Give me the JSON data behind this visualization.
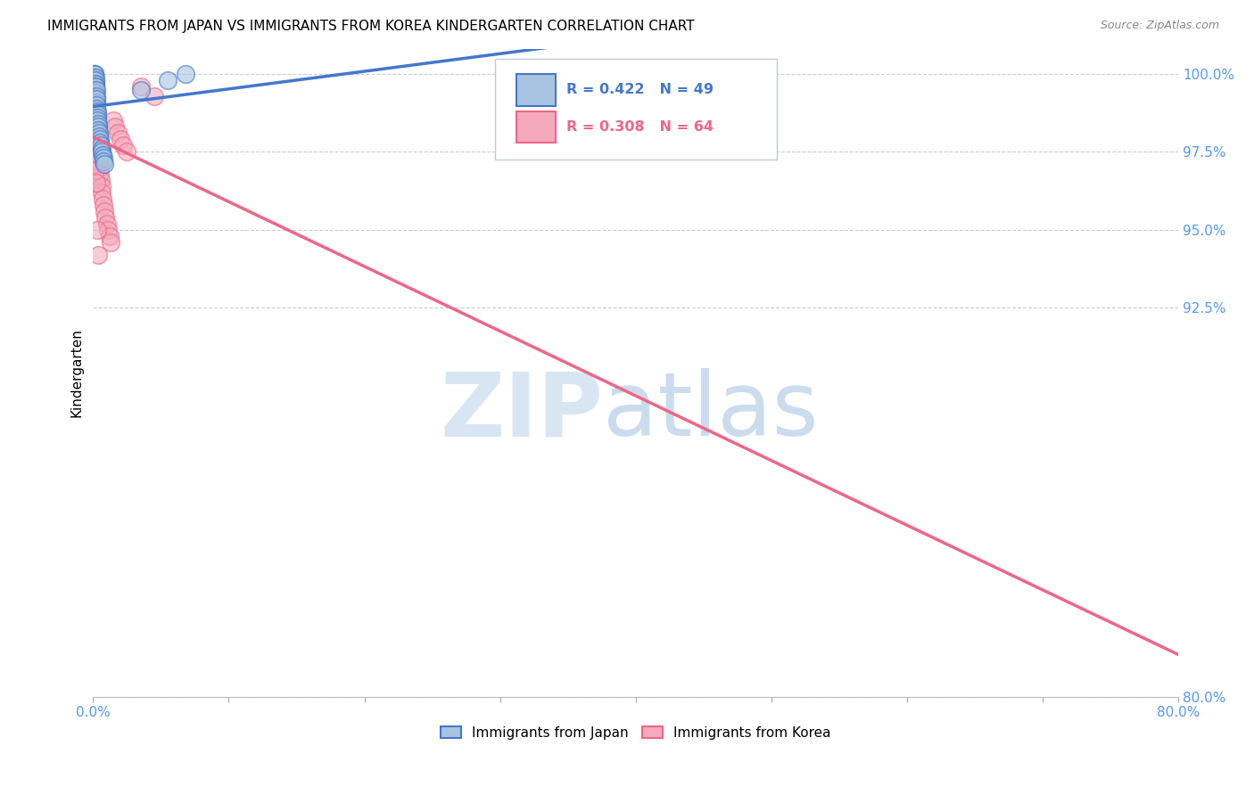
{
  "title": "IMMIGRANTS FROM JAPAN VS IMMIGRANTS FROM KOREA KINDERGARTEN CORRELATION CHART",
  "source": "Source: ZipAtlas.com",
  "ylabel": "Kindergarten",
  "yticks": [
    80.0,
    92.5,
    95.0,
    97.5,
    100.0
  ],
  "ytick_labels": [
    "80.0%",
    "92.5%",
    "95.0%",
    "97.5%",
    "100.0%"
  ],
  "japan_R": 0.422,
  "japan_N": 49,
  "korea_R": 0.308,
  "korea_N": 64,
  "japan_color": "#A8C4E0",
  "korea_color": "#F4AABB",
  "japan_line_color": "#4477CC",
  "korea_line_color": "#EE6688",
  "legend_japan": "Immigrants from Japan",
  "legend_korea": "Immigrants from Korea",
  "japan_x": [
    0.05,
    0.07,
    0.08,
    0.1,
    0.1,
    0.11,
    0.12,
    0.12,
    0.13,
    0.13,
    0.14,
    0.14,
    0.15,
    0.15,
    0.16,
    0.17,
    0.17,
    0.18,
    0.18,
    0.19,
    0.2,
    0.2,
    0.21,
    0.22,
    0.23,
    0.25,
    0.26,
    0.27,
    0.28,
    0.3,
    0.31,
    0.32,
    0.35,
    0.38,
    0.4,
    0.42,
    0.45,
    0.48,
    0.5,
    0.55,
    0.6,
    0.65,
    0.7,
    0.75,
    0.78,
    0.8,
    3.5,
    5.5,
    6.8
  ],
  "japan_y": [
    99.8,
    99.9,
    100.0,
    100.0,
    99.9,
    99.8,
    100.0,
    99.7,
    99.8,
    99.6,
    99.9,
    99.7,
    99.8,
    99.5,
    99.7,
    99.6,
    99.4,
    99.5,
    99.3,
    99.6,
    99.4,
    99.2,
    99.5,
    99.3,
    99.1,
    99.2,
    99.0,
    98.9,
    98.8,
    98.7,
    98.6,
    98.5,
    98.4,
    98.3,
    98.2,
    98.1,
    98.0,
    97.9,
    97.8,
    97.7,
    97.6,
    97.5,
    97.4,
    97.3,
    97.2,
    97.1,
    99.5,
    99.8,
    100.0
  ],
  "korea_x": [
    0.05,
    0.06,
    0.08,
    0.1,
    0.12,
    0.13,
    0.14,
    0.15,
    0.16,
    0.17,
    0.18,
    0.19,
    0.2,
    0.22,
    0.23,
    0.25,
    0.27,
    0.28,
    0.3,
    0.32,
    0.35,
    0.38,
    0.4,
    0.42,
    0.45,
    0.48,
    0.5,
    0.55,
    0.6,
    0.65,
    0.7,
    0.75,
    0.8,
    0.9,
    1.0,
    1.1,
    1.2,
    1.3,
    1.5,
    1.6,
    1.8,
    2.0,
    2.2,
    2.5,
    0.06,
    0.07,
    0.08,
    0.09,
    0.1,
    0.11,
    0.12,
    0.13,
    0.14,
    0.15,
    0.16,
    0.17,
    0.18,
    0.19,
    0.2,
    0.25,
    3.5,
    4.5,
    0.3,
    0.35
  ],
  "korea_y": [
    99.5,
    99.3,
    99.6,
    99.4,
    99.2,
    99.5,
    99.3,
    99.1,
    99.4,
    99.2,
    99.0,
    99.3,
    99.1,
    98.9,
    99.2,
    99.0,
    98.8,
    98.6,
    98.4,
    98.2,
    98.0,
    97.8,
    97.6,
    97.4,
    97.2,
    97.0,
    96.8,
    96.6,
    96.4,
    96.2,
    96.0,
    95.8,
    95.6,
    95.4,
    95.2,
    95.0,
    94.8,
    94.6,
    98.5,
    98.3,
    98.1,
    97.9,
    97.7,
    97.5,
    99.7,
    99.5,
    99.3,
    99.1,
    98.9,
    98.7,
    98.5,
    98.3,
    98.1,
    97.9,
    97.7,
    97.5,
    97.3,
    97.1,
    96.9,
    96.5,
    99.6,
    99.3,
    95.0,
    94.2
  ],
  "xmin": 0.0,
  "xmax": 80.0,
  "ymin": 80.0,
  "ymax": 100.8,
  "grid_color": "#CCCCCC",
  "title_fontsize": 11,
  "axis_color": "#5599EE"
}
